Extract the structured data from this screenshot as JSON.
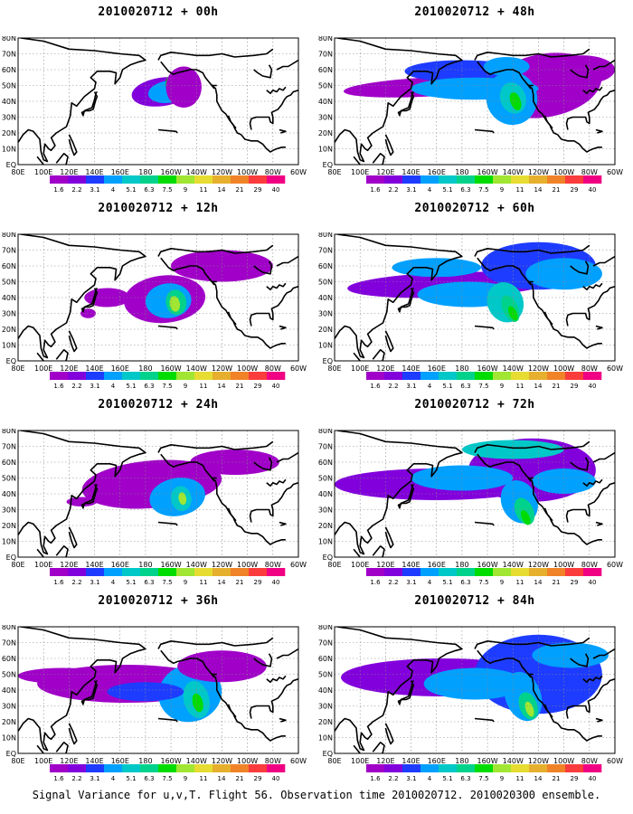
{
  "panels": [
    {
      "title": "2010020712 + 00h",
      "lead": "00h"
    },
    {
      "title": "2010020712 + 48h",
      "lead": "48h"
    },
    {
      "title": "2010020712 + 12h",
      "lead": "12h"
    },
    {
      "title": "2010020712 + 60h",
      "lead": "60h"
    },
    {
      "title": "2010020712 + 24h",
      "lead": "24h"
    },
    {
      "title": "2010020712 + 72h",
      "lead": "72h"
    },
    {
      "title": "2010020712 + 36h",
      "lead": "36h"
    },
    {
      "title": "2010020712 + 84h",
      "lead": "84h"
    }
  ],
  "lon_labels": [
    "80E",
    "100E",
    "120E",
    "140E",
    "160E",
    "180",
    "160W",
    "140W",
    "120W",
    "100W",
    "80W",
    "60W"
  ],
  "lat_labels": [
    "EQ",
    "10N",
    "20N",
    "30N",
    "40N",
    "50N",
    "60N",
    "70N",
    "80N"
  ],
  "colorbar": {
    "labels": [
      "1.6",
      "2.2",
      "3.1",
      "4",
      "5.1",
      "6.3",
      "7.5",
      "9",
      "11",
      "14",
      "21",
      "29",
      "40"
    ],
    "colors": [
      "#a000c8",
      "#8200dc",
      "#1e3cff",
      "#00a0ff",
      "#00c8c8",
      "#00d28c",
      "#00dc00",
      "#a0e632",
      "#e6dc32",
      "#e6af2d",
      "#f08228",
      "#fa3c3c",
      "#f00082"
    ]
  },
  "footer": "Signal Variance for u,v,T. Flight 56. Observation time 2010020712. 2010020300 ensemble."
}
